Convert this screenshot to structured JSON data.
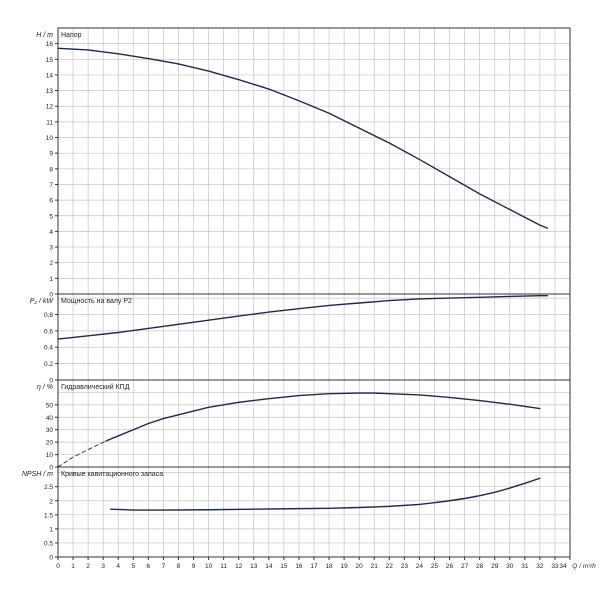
{
  "chart_data": {
    "type": "line",
    "x_axis": {
      "label": "Q / m³/h",
      "range": [
        0,
        34
      ],
      "tick_labels": [
        "0",
        "1",
        "2",
        "3",
        "4",
        "5",
        "6",
        "7",
        "8",
        "9",
        "10",
        "11",
        "12",
        "13",
        "14",
        "15",
        "16",
        "17",
        "18",
        "19",
        "20",
        "21",
        "22",
        "23",
        "24",
        "25",
        "26",
        "27",
        "28",
        "29",
        "30",
        "31",
        "32",
        "33",
        "34"
      ]
    },
    "grid": true,
    "panels": [
      {
        "id": "head",
        "ylabel": "H / m",
        "title": "Напор",
        "ylim": [
          0,
          17
        ],
        "tick_labels": [
          "0",
          "1",
          "2",
          "3",
          "4",
          "5",
          "6",
          "7",
          "8",
          "9",
          "10",
          "11",
          "12",
          "13",
          "14",
          "15",
          "16"
        ],
        "series": [
          {
            "x": [
              0,
              2,
              4,
              6,
              8,
              10,
              12,
              14,
              16,
              18,
              20,
              22,
              24,
              26,
              28,
              30,
              32,
              32.5
            ],
            "y": [
              15.7,
              15.6,
              15.35,
              15.05,
              14.7,
              14.25,
              13.7,
              13.1,
              12.35,
              11.55,
              10.6,
              9.65,
              8.6,
              7.5,
              6.4,
              5.4,
              4.4,
              4.2
            ]
          }
        ]
      },
      {
        "id": "power",
        "ylabel": "P₂ / kW",
        "title": "Мощность на валу P2",
        "ylim": [
          0,
          1.05
        ],
        "tick_labels": [
          "0",
          "0.2",
          "0.4",
          "0.6",
          "0.8"
        ],
        "series": [
          {
            "x": [
              0,
              2,
              4,
              6,
              8,
              10,
              12,
              14,
              16,
              18,
              20,
              22,
              24,
              26,
              28,
              30,
              32,
              32.5
            ],
            "y": [
              0.5,
              0.54,
              0.58,
              0.63,
              0.68,
              0.73,
              0.78,
              0.83,
              0.87,
              0.91,
              0.94,
              0.97,
              0.99,
              1.0,
              1.01,
              1.02,
              1.03,
              1.03
            ]
          }
        ]
      },
      {
        "id": "efficiency",
        "ylabel": "η / %",
        "title": "Гидравлический КПД",
        "ylim": [
          0,
          70
        ],
        "tick_labels": [
          "0",
          "10",
          "20",
          "30",
          "40",
          "50"
        ],
        "series": [
          {
            "x": [
              3.2,
              4,
              5,
              6,
              7,
              8,
              9,
              10,
              12,
              14,
              16,
              18,
              20,
              21,
              22,
              24,
              26,
              28,
              30,
              32
            ],
            "y": [
              21,
              25,
              30,
              35,
              39,
              42,
              45,
              48,
              52,
              55,
              57.5,
              59,
              59.5,
              59.5,
              59,
              58,
              56,
              53.5,
              50.5,
              47
            ]
          },
          {
            "x": [
              0,
              1,
              2,
              3.2
            ],
            "y": [
              0,
              8,
              14,
              21
            ],
            "dashed": true
          }
        ]
      },
      {
        "id": "npsh",
        "ylabel": "NPSH / m",
        "title": "Кривые кавитационного запаса",
        "ylim": [
          0,
          3.2
        ],
        "tick_labels": [
          "0",
          "0.5",
          "1",
          "1.5",
          "2",
          "2.5"
        ],
        "series": [
          {
            "x": [
              3.5,
              5,
              7,
              10,
              13,
              16,
              18,
              20,
              22,
              24,
              25,
              26,
              27,
              28,
              29,
              30,
              31,
              32
            ],
            "y": [
              1.7,
              1.67,
              1.67,
              1.68,
              1.7,
              1.72,
              1.73,
              1.76,
              1.8,
              1.87,
              1.93,
              2.0,
              2.08,
              2.18,
              2.3,
              2.45,
              2.62,
              2.8
            ]
          }
        ]
      }
    ]
  }
}
